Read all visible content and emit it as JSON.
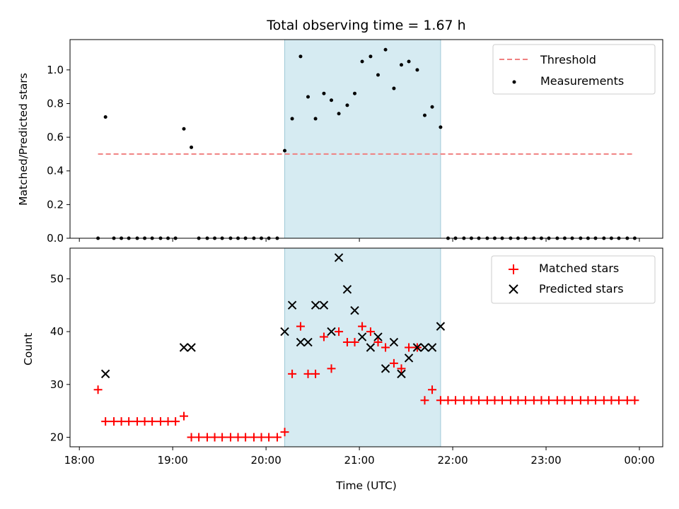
{
  "chart_data": [
    {
      "type": "scatter",
      "title": "Total observing time = 1.67 h",
      "ylabel": "Matched/Predicted stars",
      "ylim": [
        0,
        1.18
      ],
      "yticks": [
        "0.0",
        "0.2",
        "0.4",
        "0.6",
        "0.8",
        "1.0"
      ],
      "x_unit": "hours since 18:00 UTC",
      "xlim": [
        -0.1,
        6.25
      ],
      "grid": false,
      "legend_position": "upper right",
      "observing_window": [
        2.2,
        3.87
      ],
      "observing_window_color": "#add8e6",
      "threshold": {
        "name": "Threshold",
        "value": 0.5,
        "x_range": [
          0.2,
          5.95
        ],
        "color": "#f08080"
      },
      "series": [
        {
          "name": "Measurements",
          "color": "#000000",
          "x": [
            0.2,
            0.28,
            0.37,
            0.45,
            0.53,
            0.62,
            0.7,
            0.78,
            0.87,
            0.95,
            1.03,
            1.12,
            1.2,
            1.28,
            1.37,
            1.45,
            1.53,
            1.62,
            1.7,
            1.78,
            1.87,
            1.95,
            2.03,
            2.12,
            2.2,
            2.28,
            2.37,
            2.45,
            2.53,
            2.62,
            2.7,
            2.78,
            2.87,
            2.95,
            3.03,
            3.12,
            3.2,
            3.28,
            3.37,
            3.45,
            3.53,
            3.62,
            3.7,
            3.78,
            3.87,
            3.95,
            4.03,
            4.12,
            4.2,
            4.28,
            4.37,
            4.45,
            4.53,
            4.62,
            4.7,
            4.78,
            4.87,
            4.95,
            5.03,
            5.12,
            5.2,
            5.28,
            5.37,
            5.45,
            5.53,
            5.62,
            5.7,
            5.78,
            5.87,
            5.95
          ],
          "y": [
            0,
            0.72,
            0,
            0,
            0,
            0,
            0,
            0,
            0,
            0,
            0,
            0.65,
            0.54,
            0,
            0,
            0,
            0,
            0,
            0,
            0,
            0,
            0,
            0,
            0,
            0.52,
            0.71,
            1.08,
            0.84,
            0.71,
            0.86,
            0.82,
            0.74,
            0.79,
            0.86,
            1.05,
            1.08,
            0.97,
            1.12,
            0.89,
            1.03,
            1.05,
            1.0,
            0.73,
            0.78,
            0.66,
            0,
            0,
            0,
            0,
            0,
            0,
            0,
            0,
            0,
            0,
            0,
            0,
            0,
            0,
            0,
            0,
            0,
            0,
            0,
            0,
            0,
            0,
            0,
            0,
            0
          ]
        }
      ]
    },
    {
      "type": "scatter",
      "xlabel": "Time (UTC)",
      "ylabel": "Count",
      "ylim": [
        18.2,
        55.8
      ],
      "yticks": [
        "20",
        "30",
        "40",
        "50"
      ],
      "xticks": [
        "18:00",
        "19:00",
        "20:00",
        "21:00",
        "22:00",
        "23:00",
        "00:00"
      ],
      "x_unit": "hours since 18:00 UTC",
      "xlim": [
        -0.1,
        6.25
      ],
      "grid": false,
      "legend_position": "upper right",
      "observing_window": [
        2.2,
        3.87
      ],
      "observing_window_color": "#add8e6",
      "series": [
        {
          "name": "Matched stars",
          "marker": "+",
          "color": "#ff0000",
          "x": [
            0.2,
            0.28,
            0.37,
            0.45,
            0.53,
            0.62,
            0.7,
            0.78,
            0.87,
            0.95,
            1.03,
            1.12,
            1.2,
            1.28,
            1.37,
            1.45,
            1.53,
            1.62,
            1.7,
            1.78,
            1.87,
            1.95,
            2.03,
            2.12,
            2.2,
            2.28,
            2.37,
            2.45,
            2.53,
            2.62,
            2.7,
            2.78,
            2.87,
            2.95,
            3.03,
            3.12,
            3.2,
            3.28,
            3.37,
            3.45,
            3.53,
            3.62,
            3.7,
            3.78,
            3.87,
            3.95,
            4.03,
            4.12,
            4.2,
            4.28,
            4.37,
            4.45,
            4.53,
            4.62,
            4.7,
            4.78,
            4.87,
            4.95,
            5.03,
            5.12,
            5.2,
            5.28,
            5.37,
            5.45,
            5.53,
            5.62,
            5.7,
            5.78,
            5.87,
            5.95
          ],
          "y": [
            29,
            23,
            23,
            23,
            23,
            23,
            23,
            23,
            23,
            23,
            23,
            24,
            20,
            20,
            20,
            20,
            20,
            20,
            20,
            20,
            20,
            20,
            20,
            20,
            21,
            32,
            41,
            32,
            32,
            39,
            33,
            40,
            38,
            38,
            41,
            40,
            38,
            37,
            34,
            33,
            37,
            37,
            27,
            29,
            27,
            27,
            27,
            27,
            27,
            27,
            27,
            27,
            27,
            27,
            27,
            27,
            27,
            27,
            27,
            27,
            27,
            27,
            27,
            27,
            27,
            27,
            27,
            27,
            27,
            27
          ]
        },
        {
          "name": "Predicted stars",
          "marker": "x",
          "color": "#000000",
          "x": [
            0.28,
            1.12,
            1.2,
            2.2,
            2.28,
            2.37,
            2.45,
            2.53,
            2.62,
            2.7,
            2.78,
            2.87,
            2.95,
            3.03,
            3.12,
            3.2,
            3.28,
            3.37,
            3.45,
            3.53,
            3.62,
            3.7,
            3.78,
            3.87
          ],
          "y": [
            32,
            37,
            37,
            40,
            45,
            38,
            38,
            45,
            45,
            40,
            54,
            48,
            44,
            39,
            37,
            39,
            33,
            38,
            32,
            35,
            37,
            37,
            37,
            41
          ]
        }
      ]
    }
  ]
}
